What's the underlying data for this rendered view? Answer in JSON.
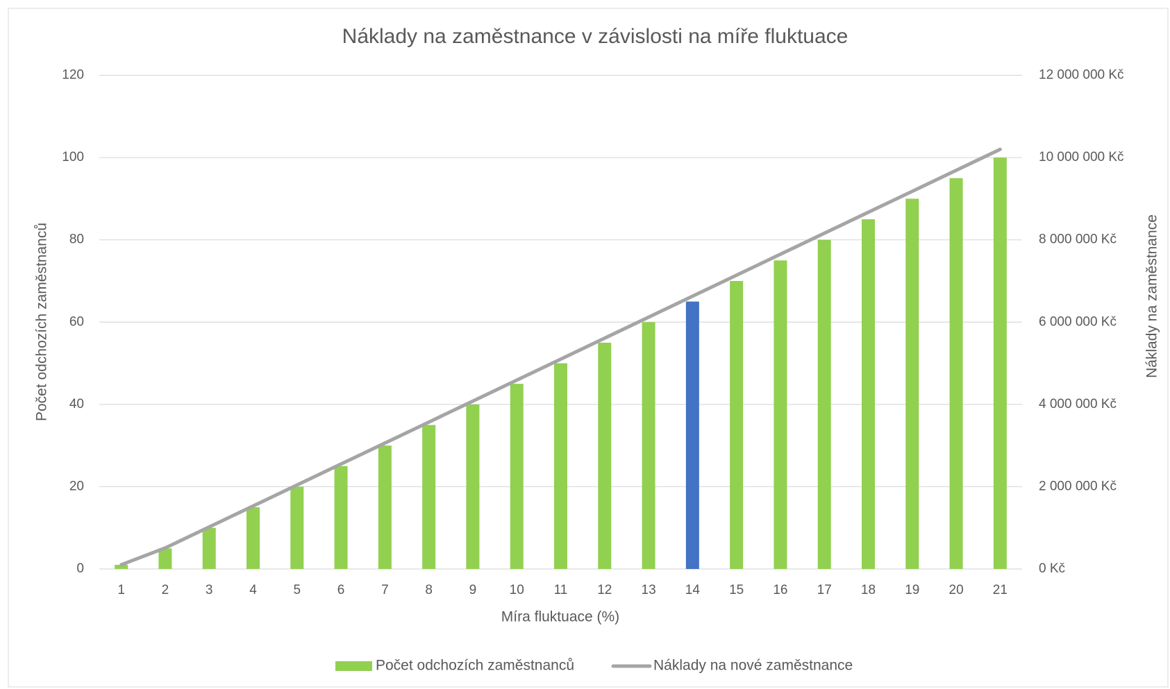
{
  "chart_data": {
    "type": "bar",
    "title": "Náklady na zaměstnance v závislosti na míře fluktuace",
    "x_label": "Míra fluktuace (%)",
    "y_label": "Počet odchozích zaměstnanců",
    "y2_label": "Náklady na zaměstnance",
    "categories": [
      "1",
      "2",
      "3",
      "4",
      "5",
      "6",
      "7",
      "8",
      "9",
      "10",
      "11",
      "12",
      "13",
      "14",
      "15",
      "16",
      "17",
      "18",
      "19",
      "20",
      "21"
    ],
    "series": [
      {
        "name": "Počet odchozích zaměstnanců",
        "type": "bar",
        "color": "#92d050",
        "colors": [
          "#92d050",
          "#92d050",
          "#92d050",
          "#92d050",
          "#92d050",
          "#92d050",
          "#92d050",
          "#92d050",
          "#92d050",
          "#92d050",
          "#92d050",
          "#92d050",
          "#92d050",
          "#4472c4",
          "#92d050",
          "#92d050",
          "#92d050",
          "#92d050",
          "#92d050",
          "#92d050",
          "#92d050"
        ],
        "values": [
          1,
          5,
          10,
          15,
          20,
          25,
          30,
          35,
          40,
          45,
          50,
          55,
          60,
          65,
          70,
          75,
          80,
          85,
          90,
          95,
          100
        ]
      },
      {
        "name": "Náklady na nové zaměstnance",
        "type": "line",
        "color": "#a5a5a5",
        "axis": "y2",
        "values": [
          102000,
          510000,
          1020000,
          1530000,
          2040000,
          2550000,
          3060000,
          3570000,
          4080000,
          4590000,
          5100000,
          5610000,
          6120000,
          6630000,
          7140000,
          7650000,
          8160000,
          8670000,
          9180000,
          9690000,
          10200000
        ]
      }
    ],
    "ylim": [
      0,
      120
    ],
    "yticks": [
      0,
      20,
      40,
      60,
      80,
      100,
      120
    ],
    "y2lim": [
      0,
      12000000
    ],
    "y2ticks": [
      {
        "value": 0,
        "label": "0 Kč"
      },
      {
        "value": 2000000,
        "label": "2 000 000 Kč"
      },
      {
        "value": 4000000,
        "label": "4 000 000 Kč"
      },
      {
        "value": 6000000,
        "label": "6 000 000 Kč"
      },
      {
        "value": 8000000,
        "label": "8 000 000 Kč"
      },
      {
        "value": 10000000,
        "label": "10 000 000 Kč"
      },
      {
        "value": 12000000,
        "label": "12 000 000 Kč"
      }
    ],
    "grid": true,
    "legend": "bottom"
  }
}
